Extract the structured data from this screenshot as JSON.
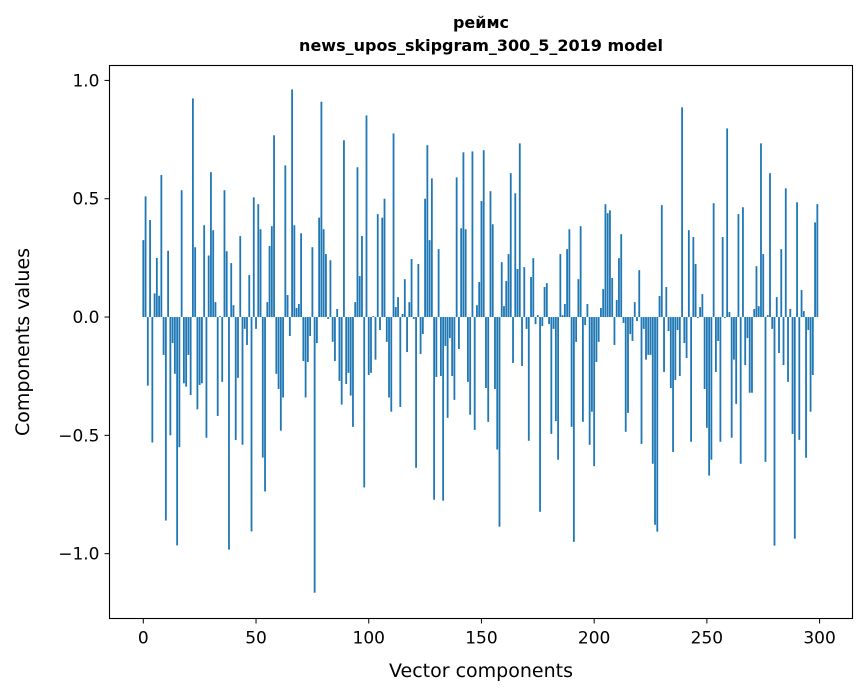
{
  "chart_data": {
    "type": "bar",
    "title": [
      "реймс",
      "news_upos_skipgram_300_5_2019 model"
    ],
    "xlabel": "Vector components",
    "ylabel": "Components values",
    "xlim": [
      -15,
      314.6
    ],
    "ylim": [
      -1.274,
      1.063
    ],
    "xticks": [
      0,
      50,
      100,
      150,
      200,
      250,
      300
    ],
    "xtick_labels": [
      "0",
      "50",
      "100",
      "150",
      "200",
      "250",
      "300"
    ],
    "yticks": [
      1.0,
      0.5,
      0.0,
      -0.5,
      -1.0
    ],
    "ytick_labels": [
      "1.0",
      "0.5",
      "0.0",
      "−0.5",
      "−1.0"
    ],
    "grid": false,
    "color": "#1f77b4",
    "values": [
      0.325,
      0.51,
      -0.29,
      0.41,
      -0.53,
      0.1,
      0.25,
      0.09,
      0.6,
      -0.16,
      -0.86,
      0.28,
      -0.5,
      -0.11,
      -0.24,
      -0.965,
      -0.55,
      0.536,
      -0.28,
      -0.294,
      -0.16,
      -0.33,
      0.924,
      0.295,
      -0.39,
      -0.287,
      -0.28,
      0.388,
      -0.51,
      0.26,
      0.612,
      0.367,
      0.063,
      -0.418,
      0.004,
      -0.274,
      0.536,
      0.278,
      -0.983,
      0.228,
      0.05,
      -0.52,
      -0.257,
      0.342,
      -0.54,
      -0.05,
      -0.118,
      0.177,
      -0.906,
      0.506,
      -0.05,
      0.477,
      0.371,
      -0.594,
      -0.737,
      0.063,
      0.3,
      0.384,
      0.768,
      -0.24,
      -0.304,
      -0.48,
      -0.34,
      0.641,
      0.093,
      -0.08,
      0.962,
      0.388,
      0.038,
      0.055,
      0.354,
      -0.186,
      -0.34,
      -0.19,
      -0.08,
      0.295,
      -1.165,
      -0.11,
      0.42,
      0.91,
      0.371,
      0.266,
      -0.008,
      0.24,
      -0.105,
      -0.186,
      0.034,
      -0.27,
      -0.37,
      0.747,
      -0.283,
      -0.236,
      -0.332,
      -0.464,
      0.063,
      0.633,
      0.173,
      0.342,
      -0.72,
      0.852,
      -0.245,
      -0.236,
      0.004,
      -0.18,
      0.435,
      -0.055,
      0.42,
      0.5,
      -0.105,
      -0.34,
      -0.4,
      0.776,
      0.042,
      0.084,
      -0.38,
      0.013,
      0.16,
      -0.148,
      0.063,
      0.245,
      -0.008,
      -0.637,
      0.224,
      -0.156,
      -0.072,
      0.5,
      0.726,
      0.325,
      0.586,
      -0.772,
      -0.253,
      0.287,
      -0.249,
      -0.776,
      -0.122,
      -0.426,
      -0.089,
      -0.249,
      -0.35,
      0.59,
      -0.135,
      0.375,
      0.696,
      0.371,
      -0.274,
      -0.413,
      0.7,
      -0.477,
      0.05,
      0.148,
      0.49,
      0.705,
      -0.3,
      -0.443,
      0.532,
      0.392,
      -0.304,
      -0.56,
      -0.886,
      0.232,
      0.046,
      0.152,
      0.266,
      0.608,
      -0.194,
      0.523,
      0.203,
      0.734,
      -0.207,
      0.211,
      -0.05,
      -0.523,
      0.169,
      0.249,
      -0.03,
      0.008,
      -0.823,
      -0.038,
      0.127,
      0.143,
      -0.03,
      -0.494,
      -0.05,
      -0.44,
      -0.603,
      0.266,
      0.008,
      0.055,
      0.287,
      0.371,
      -0.464,
      -0.95,
      -0.105,
      0.16,
      0.384,
      -0.443,
      -0.034,
      0.055,
      -0.54,
      -0.4,
      -0.63,
      -0.19,
      -0.105,
      0.038,
      0.118,
      0.477,
      0.439,
      0.451,
      0.165,
      -0.118,
      0.072,
      0.249,
      0.35,
      -0.025,
      -0.485,
      -0.405,
      -0.072,
      -0.101,
      0.063,
      -0.017,
      0.198,
      -0.536,
      -0.05,
      -0.18,
      -0.16,
      -0.16,
      -0.62,
      -0.878,
      -0.907,
      0.089,
      0.473,
      -0.232,
      0.127,
      -0.059,
      -0.3,
      -0.57,
      -0.266,
      -0.055,
      -0.249,
      0.886,
      -0.11,
      -0.173,
      0.367,
      -0.527,
      0.338,
      0.224,
      -0.004,
      0.042,
      0.097,
      -0.304,
      -0.468,
      -0.67,
      -0.603,
      0.481,
      -0.232,
      -0.101,
      -0.527,
      0.338,
      -0.004,
      0.797,
      0.021,
      -0.51,
      -0.18,
      -0.367,
      0.435,
      -0.62,
      0.464,
      -0.203,
      -0.089,
      -0.32,
      -0.32,
      0.034,
      0.215,
      0.046,
      0.734,
      0.266,
      -0.612,
      0.008,
      0.608,
      -0.05,
      -0.966,
      0.084,
      -0.152,
      0.287,
      -0.203,
      0.544,
      -0.274,
      0.034,
      -0.494,
      -0.937,
      0.485,
      -0.519,
      0.114,
      0.025,
      -0.595,
      -0.055,
      -0.4,
      -0.245,
      0.4,
      0.477
    ]
  }
}
